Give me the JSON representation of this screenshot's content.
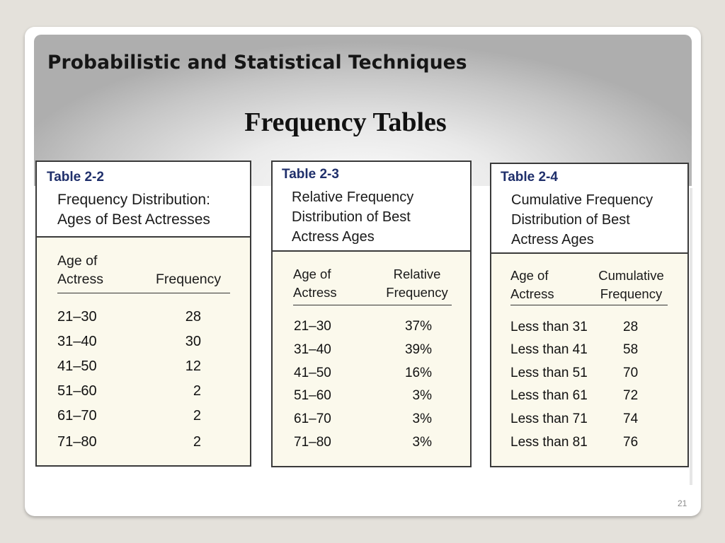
{
  "slide": {
    "title": "Probabilistic and Statistical Techniques",
    "subtitle": "Frequency Tables",
    "page_number": "21"
  },
  "tables": [
    {
      "label": "Table 2-2",
      "caption": [
        "Frequency Distribution:",
        "Ages of Best Actresses"
      ],
      "col1_header": [
        "Age of",
        "Actress"
      ],
      "col2_header": [
        "",
        "Frequency"
      ],
      "rows": [
        [
          "21–30",
          "28"
        ],
        [
          "31–40",
          "30"
        ],
        [
          "41–50",
          "12"
        ],
        [
          "51–60",
          "2"
        ],
        [
          "61–70",
          "2"
        ],
        [
          "71–80",
          "2"
        ]
      ]
    },
    {
      "label": "Table 2-3",
      "caption": [
        "Relative Frequency",
        "Distribution of Best",
        "Actress Ages"
      ],
      "col1_header": [
        "Age of",
        "Actress"
      ],
      "col2_header": [
        "Relative",
        "Frequency"
      ],
      "rows": [
        [
          "21–30",
          "37%"
        ],
        [
          "31–40",
          "39%"
        ],
        [
          "41–50",
          "16%"
        ],
        [
          "51–60",
          "3%"
        ],
        [
          "61–70",
          "3%"
        ],
        [
          "71–80",
          "3%"
        ]
      ]
    },
    {
      "label": "Table 2-4",
      "caption": [
        "Cumulative Frequency",
        "Distribution of Best",
        "Actress Ages"
      ],
      "col1_header": [
        "Age of",
        "Actress"
      ],
      "col2_header": [
        "Cumulative",
        "Frequency"
      ],
      "rows": [
        [
          "Less than 31",
          "28"
        ],
        [
          "Less than 41",
          "58"
        ],
        [
          "Less than 51",
          "70"
        ],
        [
          "Less than 61",
          "72"
        ],
        [
          "Less than 71",
          "74"
        ],
        [
          "Less than 81",
          "76"
        ]
      ]
    }
  ],
  "colors": {
    "label_blue": "#1f2f6b",
    "table_fill": "#fbf9ec",
    "frame": "#e4e1db"
  }
}
